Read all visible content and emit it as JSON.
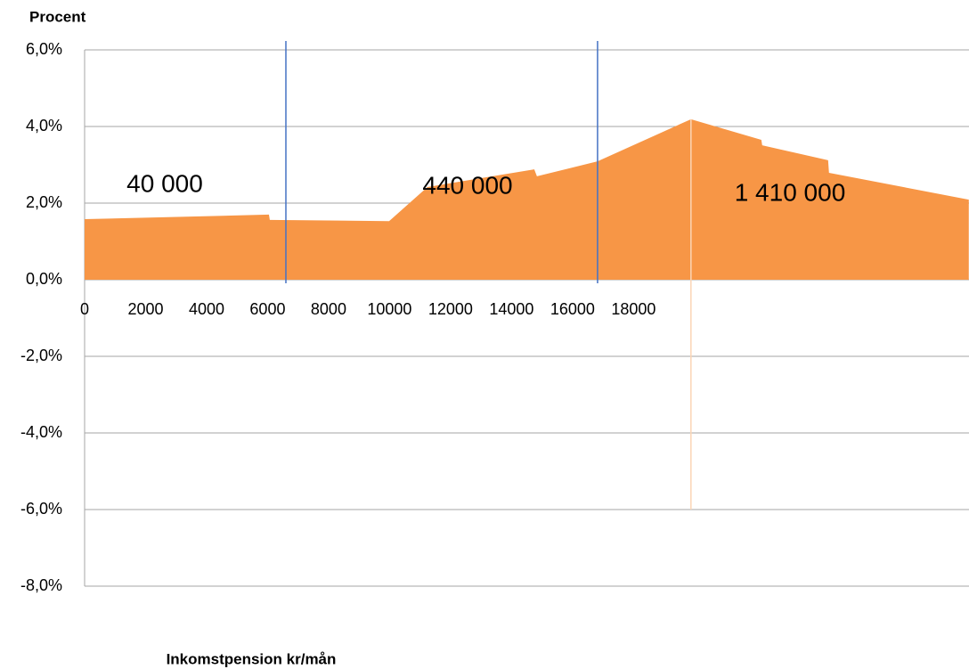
{
  "chart_data": {
    "type": "area",
    "title": "Procent",
    "x_label": "Inkomstpension kr/mån",
    "color": "#f79646",
    "x": [
      0,
      6044,
      6073,
      9985,
      11241,
      14745,
      14832,
      16818,
      19883,
      22190,
      22219,
      24380,
      24409,
      28993
    ],
    "values": [
      1.58,
      1.7,
      1.56,
      1.53,
      2.42,
      2.88,
      2.7,
      3.09,
      4.19,
      3.65,
      3.51,
      3.12,
      2.79,
      2.09
    ],
    "xlim": [
      0,
      29000
    ],
    "xticks": [
      0,
      2000,
      4000,
      6000,
      8000,
      10000,
      12000,
      14000,
      16000,
      18000
    ],
    "ylim": [
      -8,
      6
    ],
    "yticks": [
      {
        "value": -8,
        "label": "-8,0%"
      },
      {
        "value": -6,
        "label": "-6,0%"
      },
      {
        "value": -4,
        "label": "-4,0%"
      },
      {
        "value": -2,
        "label": "-2,0%"
      },
      {
        "value": 0,
        "label": "0,0%"
      },
      {
        "value": 2,
        "label": "2,0%"
      },
      {
        "value": 4,
        "label": "4,0%"
      },
      {
        "value": 6,
        "label": "6,0%"
      }
    ],
    "grid": true,
    "vlines": [
      {
        "x": 6600,
        "color": "#4472c4"
      },
      {
        "x": 16820,
        "color": "#4472c4"
      },
      {
        "x": 19883,
        "color": "#fbd5b5",
        "y": [
          -6,
          4.19
        ]
      }
    ],
    "annotations": [
      "40 000",
      "440 000",
      "1 410 000"
    ]
  }
}
